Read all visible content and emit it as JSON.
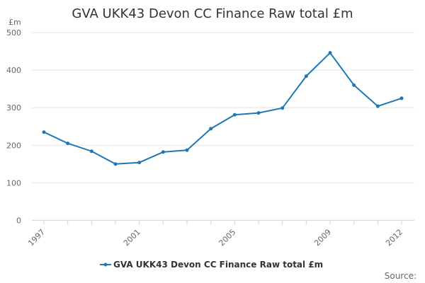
{
  "chart_data": {
    "type": "line",
    "title": "GVA UKK43 Devon CC Finance Raw total £m",
    "ylabel": "£m",
    "xlabel": "",
    "ylim": [
      0,
      500
    ],
    "yticks": [
      "0",
      "100",
      "200",
      "300",
      "400",
      "500"
    ],
    "xticks": [
      "1997",
      "2001",
      "2005",
      "2009",
      "2012"
    ],
    "grid": true,
    "legend_placement": "bottom",
    "series": [
      {
        "name": "GVA UKK43 Devon CC Finance Raw total £m",
        "color": "#1f77b4",
        "x": [
          1997,
          1998,
          1999,
          2000,
          2001,
          2002,
          2003,
          2004,
          2005,
          2006,
          2007,
          2008,
          2009,
          2010,
          2011,
          2012
        ],
        "values": [
          235,
          205,
          184,
          150,
          154,
          182,
          187,
          244,
          281,
          286,
          299,
          384,
          446,
          360,
          304,
          325
        ]
      }
    ]
  },
  "footer": {
    "source": "Source:"
  }
}
